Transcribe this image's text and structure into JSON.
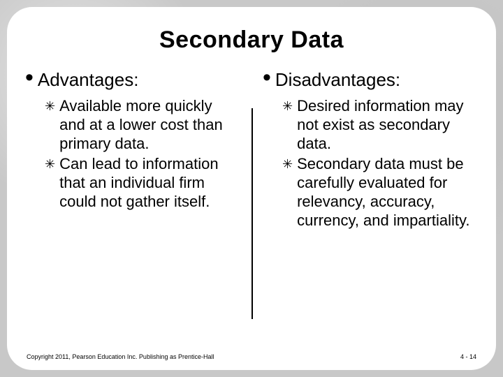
{
  "title": "Secondary Data",
  "left": {
    "heading": "Advantages:",
    "items": [
      "Available more quickly and at a lower cost than primary data.",
      "Can lead to information that an individual firm could not gather itself."
    ]
  },
  "right": {
    "heading": "Disadvantages:",
    "items": [
      "Desired information may not exist as secondary data.",
      "Secondary data must be carefully evaluated for relevancy, accuracy, currency, and impartiality."
    ]
  },
  "footer": {
    "copyright": "Copyright 2011, Pearson Education Inc. Publishing as Prentice-Hall",
    "page": "4 - 14"
  },
  "bullet_glyph": "•",
  "star_glyph": "✳"
}
